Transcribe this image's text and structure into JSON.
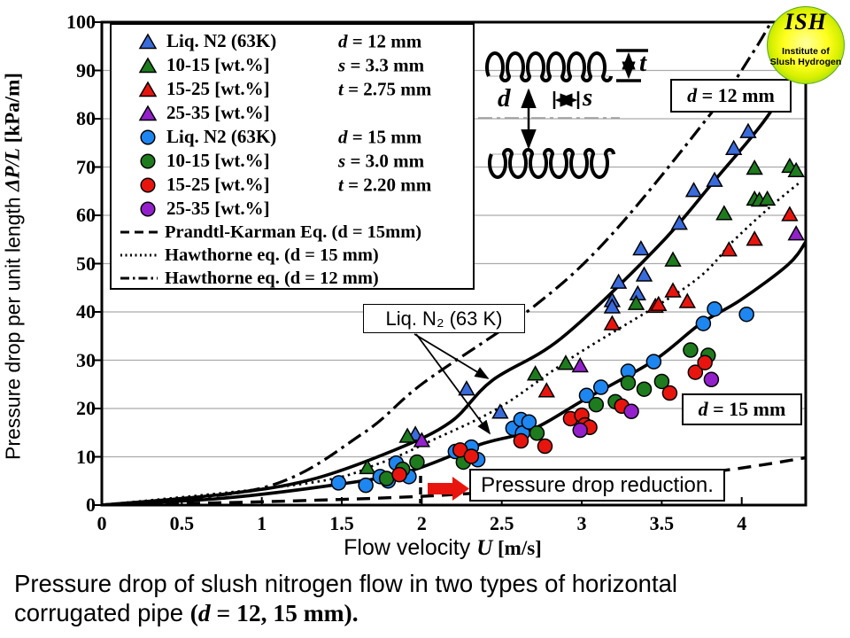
{
  "logo": {
    "line1": "ISH",
    "line2": "Institute of",
    "line3": "Slush Hydrogen"
  },
  "caption": {
    "line1": "Pressure drop of slush nitrogen flow in two types of horizontal",
    "line2_plain": "corrugated pipe ",
    "line2_paren_open": "(",
    "line2_var": "d",
    "line2_rest": " = 12, 15 mm)."
  },
  "axes": {
    "x_title_plain": "Flow velocity ",
    "x_title_var": "U",
    "x_title_unit": " [m/s]",
    "y_title_plain": "Pressure drop per unit length ",
    "y_title_var": "ΔP/L",
    "y_title_unit": " [kPa/m]"
  },
  "annotations": {
    "d12_label": "d = 12 mm",
    "d15_label": "d = 15 mm",
    "liq_label": "Liq. N₂ (63 K)",
    "reduction_label": "Pressure drop reduction."
  },
  "pipe_diagram": {
    "d": "d",
    "s": "s",
    "t": "t"
  },
  "chart_data": {
    "type": "scatter",
    "xlabel": "Flow velocity U [m/s]",
    "ylabel": "Pressure drop per unit length ΔP/L [kPa/m]",
    "xlim": [
      0,
      4.4
    ],
    "ylim": [
      0,
      100
    ],
    "x_ticks": [
      0,
      0.5,
      1,
      1.5,
      2,
      2.5,
      3,
      3.5,
      4
    ],
    "y_ticks": [
      0,
      10,
      20,
      30,
      40,
      50,
      60,
      70,
      80,
      90,
      100
    ],
    "grid": true,
    "legend_position": "upper-left",
    "legend": {
      "entries": [
        {
          "marker": "triangle",
          "color": "#3A6BDB",
          "label": "Liq. N2 (63K)"
        },
        {
          "marker": "triangle",
          "color": "#1E7B1E",
          "label": "10-15 [wt.%]"
        },
        {
          "marker": "triangle",
          "color": "#E8150F",
          "label": "15-25 [wt.%]"
        },
        {
          "marker": "triangle",
          "color": "#9420CC",
          "label": "25-35 [wt.%]"
        },
        {
          "marker": "circle",
          "color": "#1E86F0",
          "label": "Liq. N2 (63K)"
        },
        {
          "marker": "circle",
          "color": "#1E7B1E",
          "label": "10-15 [wt.%]"
        },
        {
          "marker": "circle",
          "color": "#E8150F",
          "label": "15-25 [wt.%]"
        },
        {
          "marker": "circle",
          "color": "#9420CC",
          "label": "25-35 [wt.%]"
        },
        {
          "marker": "dashed",
          "color": "#000000",
          "label": "Prandtl-Karman Eq. (d = 15mm)"
        },
        {
          "marker": "dotted",
          "color": "#000000",
          "label": "Hawthorne eq. (d = 15 mm)"
        },
        {
          "marker": "dashdot",
          "color": "#000000",
          "label": "Hawthorne eq. (d = 12 mm)"
        }
      ],
      "specs": [
        "d = 12 mm",
        "s = 3.3 mm",
        "t = 2.75 mm",
        "d = 15 mm",
        "s = 3.0 mm",
        "t = 2.20 mm"
      ],
      "spec_rows": [
        0,
        1,
        2,
        4,
        5,
        6
      ]
    },
    "series": [
      {
        "name": "Liq. N2 (63K) d=12",
        "marker": "triangle",
        "color": "#3A6BDB",
        "points": [
          [
            1.96,
            14.6
          ],
          [
            2.28,
            24.0
          ],
          [
            2.49,
            19.2
          ],
          [
            3.19,
            42.3
          ],
          [
            3.19,
            41.0
          ],
          [
            3.23,
            46.1
          ],
          [
            3.35,
            43.7
          ],
          [
            3.37,
            53.0
          ],
          [
            3.39,
            47.6
          ],
          [
            3.61,
            58.3
          ],
          [
            3.7,
            65.1
          ],
          [
            3.83,
            67.2
          ],
          [
            3.95,
            73.8
          ],
          [
            4.04,
            77.3
          ]
        ]
      },
      {
        "name": "10-15 wt% d=12",
        "marker": "triangle",
        "color": "#1E7B1E",
        "points": [
          [
            1.66,
            7.7
          ],
          [
            1.91,
            14.2
          ],
          [
            2.71,
            27.1
          ],
          [
            2.9,
            29.3
          ],
          [
            3.34,
            41.7
          ],
          [
            3.57,
            50.7
          ],
          [
            3.89,
            60.3
          ],
          [
            4.08,
            63.3
          ],
          [
            4.11,
            63.1
          ],
          [
            4.16,
            63.3
          ],
          [
            4.08,
            69.7
          ],
          [
            4.3,
            70.1
          ],
          [
            4.34,
            69.2
          ]
        ]
      },
      {
        "name": "15-25 wt% d=12",
        "marker": "triangle",
        "color": "#E8150F",
        "points": [
          [
            2.78,
            23.6
          ],
          [
            3.19,
            37.5
          ],
          [
            3.46,
            41.1
          ],
          [
            3.48,
            41.5
          ],
          [
            3.57,
            44.3
          ],
          [
            3.66,
            42.1
          ],
          [
            3.92,
            52.8
          ],
          [
            4.08,
            55.0
          ],
          [
            4.3,
            60.1
          ]
        ]
      },
      {
        "name": "25-35 wt% d=12",
        "marker": "triangle",
        "color": "#9420CC",
        "points": [
          [
            2.0,
            13.3
          ],
          [
            2.99,
            28.8
          ],
          [
            4.34,
            56.1
          ]
        ]
      },
      {
        "name": "Liq. N2 (63K) d=15",
        "marker": "circle",
        "color": "#1E86F0",
        "points": [
          [
            1.48,
            4.6
          ],
          [
            1.65,
            4.1
          ],
          [
            1.74,
            5.9
          ],
          [
            1.79,
            5.0
          ],
          [
            1.84,
            8.7
          ],
          [
            1.92,
            5.9
          ],
          [
            2.21,
            11.1
          ],
          [
            2.31,
            12.0
          ],
          [
            2.35,
            9.4
          ],
          [
            2.57,
            15.9
          ],
          [
            2.62,
            17.7
          ],
          [
            2.63,
            14.9
          ],
          [
            2.67,
            17.2
          ],
          [
            3.03,
            22.7
          ],
          [
            3.12,
            24.4
          ],
          [
            3.29,
            27.7
          ],
          [
            3.45,
            29.7
          ],
          [
            3.76,
            37.6
          ],
          [
            3.83,
            40.6
          ],
          [
            4.03,
            39.5
          ]
        ]
      },
      {
        "name": "10-15 wt% d=15",
        "marker": "circle",
        "color": "#1E7B1E",
        "points": [
          [
            1.78,
            5.5
          ],
          [
            1.88,
            7.4
          ],
          [
            1.97,
            8.9
          ],
          [
            2.26,
            8.9
          ],
          [
            2.72,
            14.9
          ],
          [
            3.09,
            20.8
          ],
          [
            3.21,
            21.4
          ],
          [
            3.29,
            25.3
          ],
          [
            3.39,
            24.0
          ],
          [
            3.5,
            25.6
          ],
          [
            3.68,
            32.1
          ],
          [
            3.79,
            31.0
          ]
        ]
      },
      {
        "name": "15-25 wt% d=15",
        "marker": "circle",
        "color": "#E8150F",
        "points": [
          [
            1.86,
            6.3
          ],
          [
            2.24,
            11.4
          ],
          [
            2.31,
            10.1
          ],
          [
            2.62,
            13.3
          ],
          [
            2.77,
            12.2
          ],
          [
            2.93,
            17.9
          ],
          [
            3.0,
            18.6
          ],
          [
            3.02,
            16.6
          ],
          [
            3.05,
            16.1
          ],
          [
            3.25,
            20.5
          ],
          [
            3.55,
            23.2
          ],
          [
            3.71,
            27.5
          ],
          [
            3.77,
            29.5
          ]
        ]
      },
      {
        "name": "25-35 wt% d=15",
        "marker": "circle",
        "color": "#9420CC",
        "points": [
          [
            2.99,
            15.5
          ],
          [
            3.31,
            19.4
          ],
          [
            3.81,
            26.0
          ]
        ]
      }
    ],
    "curves": [
      {
        "name": "Prandtl-Karman Eq. (d = 15mm)",
        "style": "dashed",
        "points": [
          [
            0,
            0
          ],
          [
            1.02,
            0.7
          ],
          [
            1.99,
            1.8
          ],
          [
            2.68,
            3.3
          ],
          [
            3.24,
            4.6
          ],
          [
            3.94,
            7.4
          ],
          [
            4.4,
            9.8
          ]
        ]
      },
      {
        "name": "Hawthorne eq. (d = 15 mm)",
        "style": "dotted",
        "points": [
          [
            0,
            0
          ],
          [
            1.3,
            4.6
          ],
          [
            1.74,
            8.7
          ],
          [
            2.07,
            13.5
          ],
          [
            2.49,
            20.3
          ],
          [
            2.96,
            31.0
          ],
          [
            3.68,
            45.8
          ],
          [
            3.95,
            54.8
          ],
          [
            4.18,
            61.8
          ],
          [
            4.37,
            67.0
          ]
        ]
      },
      {
        "name": "Hawthorne eq. (d = 12 mm)",
        "style": "dashdot",
        "points": [
          [
            0,
            0
          ],
          [
            1.02,
            3.7
          ],
          [
            1.63,
            14.8
          ],
          [
            2.01,
            25.3
          ],
          [
            2.68,
            40.6
          ],
          [
            3.17,
            55.4
          ],
          [
            3.81,
            81.2
          ],
          [
            4.07,
            93.7
          ],
          [
            4.2,
            101
          ]
        ]
      },
      {
        "name": "Fit d = 12 mm",
        "style": "solid",
        "points": [
          [
            0,
            0
          ],
          [
            0.75,
            2.2
          ],
          [
            1.3,
            5.2
          ],
          [
            1.83,
            11.4
          ],
          [
            2.18,
            17.2
          ],
          [
            2.44,
            25.8
          ],
          [
            2.87,
            34.5
          ],
          [
            3.46,
            53.0
          ],
          [
            3.83,
            67.2
          ],
          [
            4.18,
            81.4
          ],
          [
            4.33,
            92.0
          ]
        ]
      },
      {
        "name": "Fit d = 15 mm",
        "style": "solid",
        "points": [
          [
            0,
            0
          ],
          [
            0.75,
            1.4
          ],
          [
            1.48,
            4.3
          ],
          [
            1.92,
            7.0
          ],
          [
            2.36,
            12.5
          ],
          [
            2.68,
            15.5
          ],
          [
            3.03,
            22.1
          ],
          [
            3.45,
            29.9
          ],
          [
            3.74,
            37.5
          ],
          [
            3.99,
            42.4
          ],
          [
            4.29,
            49.8
          ],
          [
            4.4,
            54.5
          ]
        ]
      }
    ]
  }
}
